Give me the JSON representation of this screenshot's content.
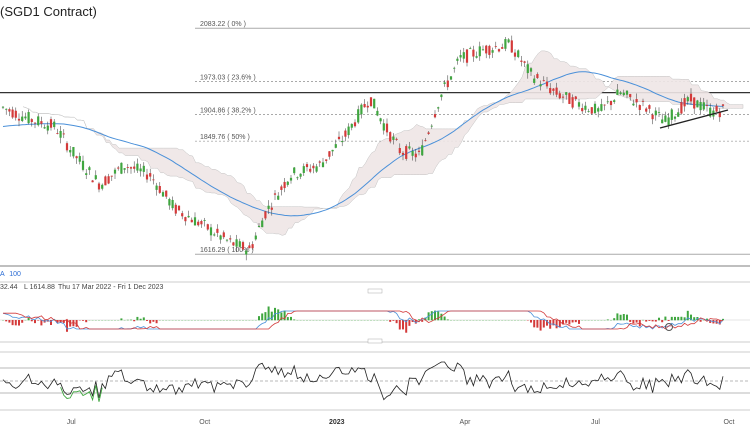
{
  "chart_data": {
    "type": "candlestick",
    "title": "(SGD1 Contract)",
    "period": "Thu 17 Mar 2022 - Fri 1 Dec 2023",
    "info": {
      "prefix": "A",
      "value": "100",
      "high_tail": "32.44",
      "low": "L 1614.88"
    },
    "fib_levels": [
      {
        "label": "2083.22 ( 0% )",
        "value": 2083.22
      },
      {
        "label": "1973.03 ( 23.6% )",
        "value": 1973.03
      },
      {
        "label": "1904.86 ( 38.2% )",
        "value": 1904.86
      },
      {
        "label": "1849.76 ( 50% )",
        "value": 1849.76
      },
      {
        "label": "1616.29 ( 100% )",
        "value": 1616.29
      }
    ],
    "resistance_level": 1950,
    "ylim": [
      1600,
      2100
    ],
    "x_ticks": [
      {
        "label": "Jul",
        "bold": false,
        "pos": 0.095
      },
      {
        "label": "Oct",
        "bold": false,
        "pos": 0.273
      },
      {
        "label": "2023",
        "bold": true,
        "pos": 0.449
      },
      {
        "label": "Apr",
        "bold": false,
        "pos": 0.62
      },
      {
        "label": "Jul",
        "bold": false,
        "pos": 0.794
      },
      {
        "label": "Oct",
        "bold": false,
        "pos": 0.972
      }
    ],
    "colors": {
      "up": "#3fa63f",
      "down": "#d43a3a",
      "ma": "#4a90d9",
      "cloud": "#e8e8e8",
      "grid": "#888888"
    }
  }
}
